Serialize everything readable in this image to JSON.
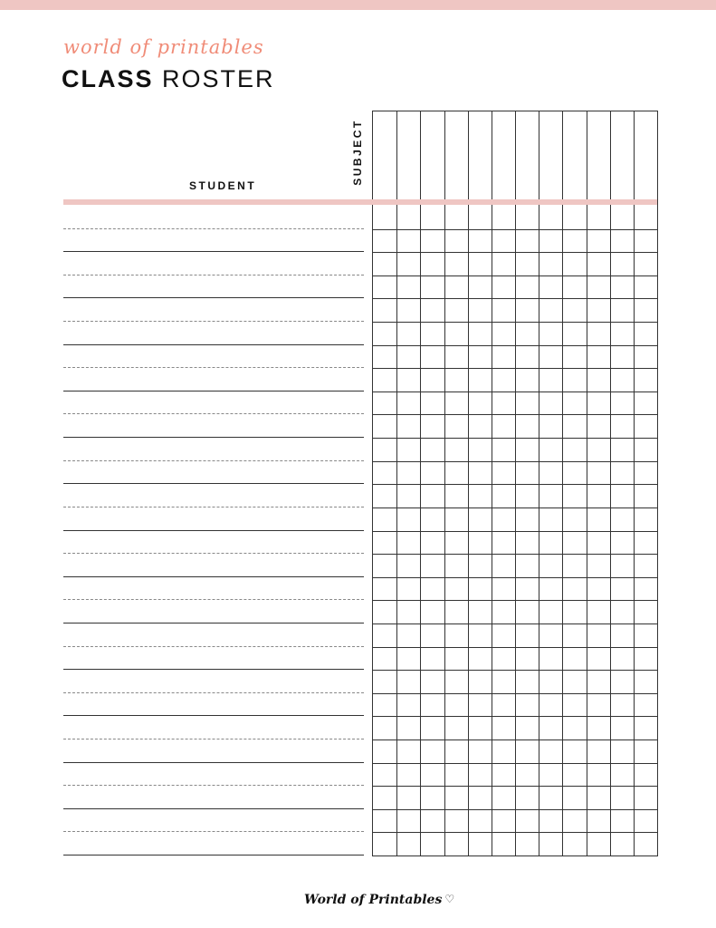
{
  "brand": {
    "script_text": "world of printables",
    "footer_text": "World of Printables",
    "heart_icon": "heart-icon"
  },
  "title": {
    "bold": "CLASS",
    "light": "ROSTER"
  },
  "headers": {
    "student": "STUDENT",
    "subject": "SUBJECT"
  },
  "colors": {
    "accent_pink": "#efc6c3",
    "script_orange": "#f08c78",
    "line": "#333333"
  }
}
